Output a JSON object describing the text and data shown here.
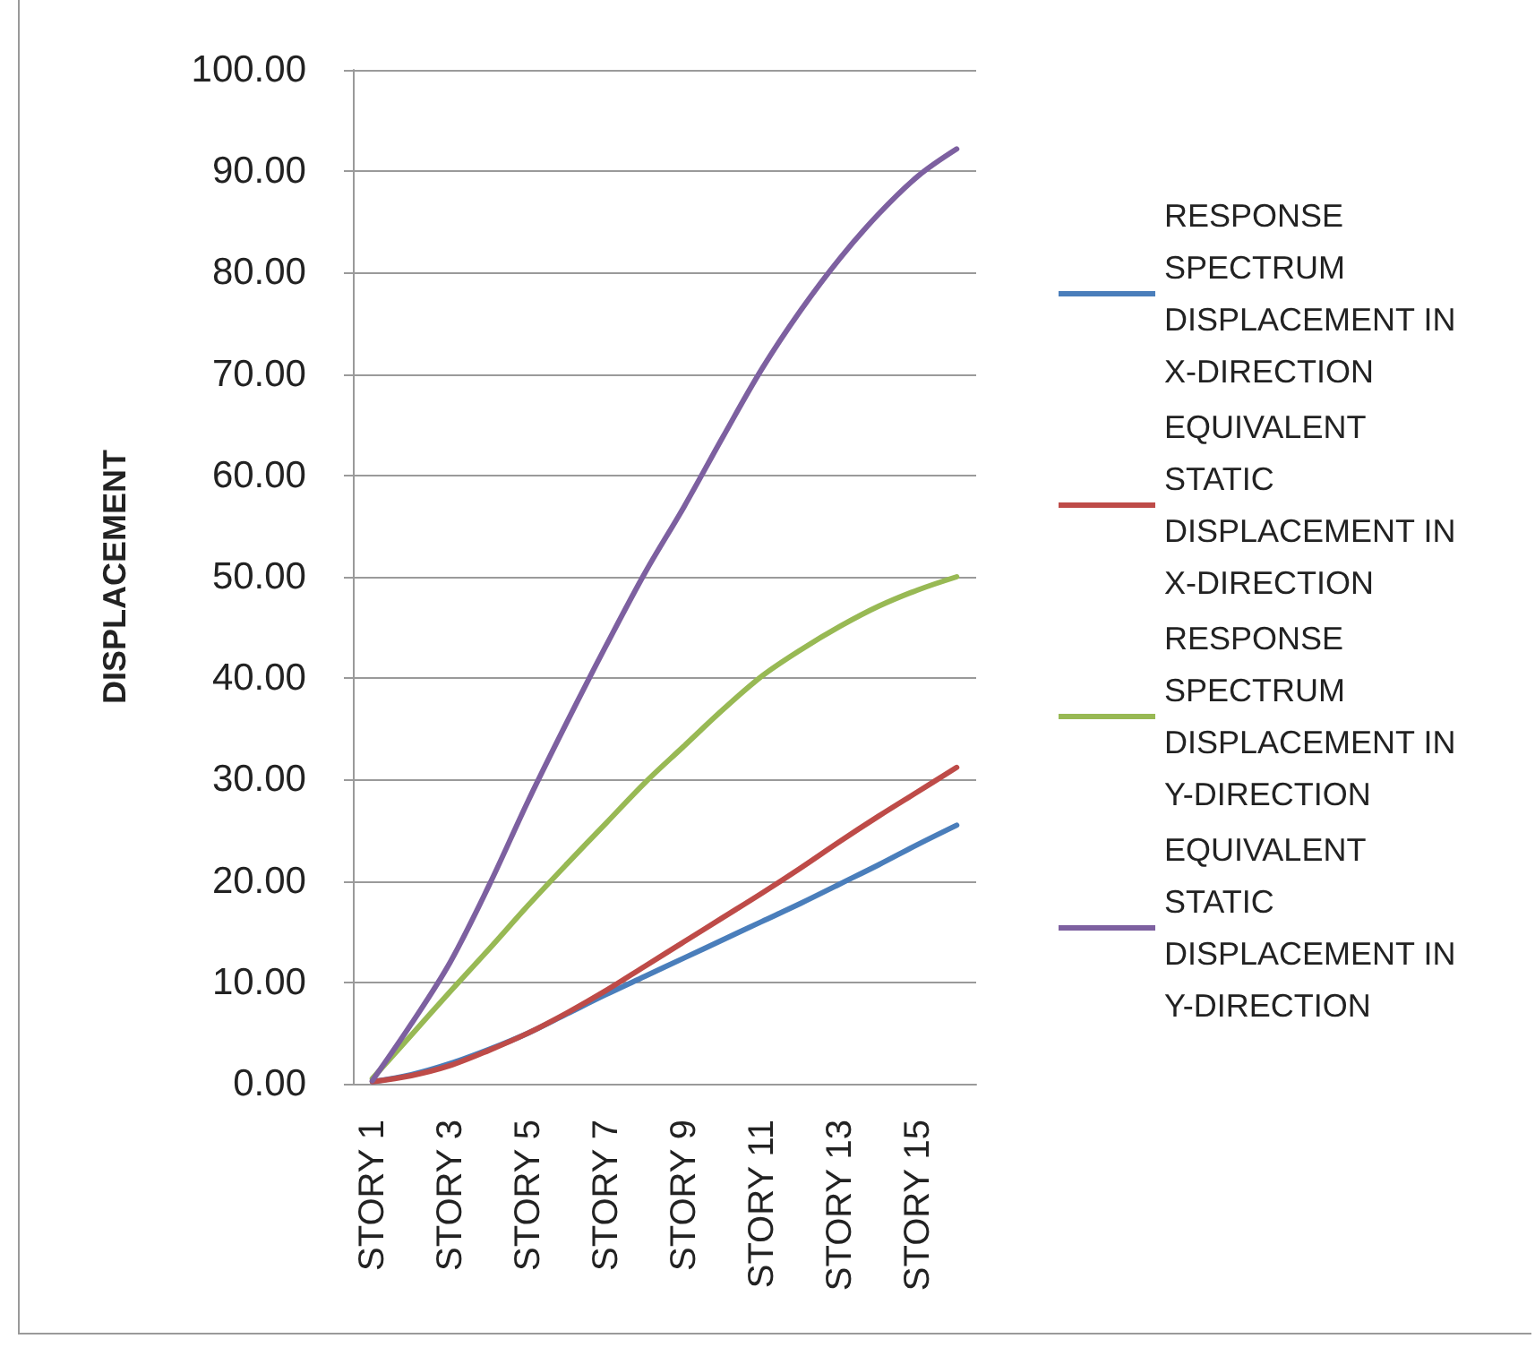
{
  "chart_data": {
    "type": "line",
    "ylabel": "DISPLACEMENT",
    "categories": [
      "STORY 1",
      null,
      "STORY 3",
      null,
      "STORY 5",
      null,
      "STORY 7",
      null,
      "STORY 9",
      null,
      "STORY 11",
      null,
      "STORY 13",
      null,
      "STORY 15",
      null
    ],
    "series": [
      {
        "name": "RESPONSE SPECTRUM DISPLACEMENT IN X-DIRECTION",
        "color": "#4a7ebb",
        "values": [
          0.2,
          0.9,
          2.0,
          3.4,
          5.0,
          6.9,
          8.8,
          10.6,
          12.4,
          14.2,
          16.0,
          17.8,
          19.7,
          21.6,
          23.6,
          25.5
        ]
      },
      {
        "name": "EQUIVALENT STATIC DISPLACEMENT IN X-DIRECTION",
        "color": "#be4b48",
        "values": [
          0.2,
          0.8,
          1.8,
          3.3,
          5.0,
          7.0,
          9.2,
          11.6,
          14.0,
          16.4,
          18.8,
          21.3,
          23.9,
          26.4,
          28.8,
          31.2
        ]
      },
      {
        "name": "RESPONSE SPECTRUM DISPLACEMENT IN Y-DIRECTION",
        "color": "#98b954",
        "values": [
          0.5,
          4.8,
          9.1,
          13.3,
          17.6,
          21.7,
          25.7,
          29.7,
          33.3,
          36.9,
          40.2,
          42.8,
          45.1,
          47.1,
          48.7,
          50.0
        ]
      },
      {
        "name": "EQUIVALENT STATIC DISPLACEMENT IN Y-DIRECTION",
        "color": "#7d60a0",
        "values": [
          0.3,
          5.9,
          12.0,
          19.6,
          27.9,
          35.7,
          43.2,
          50.4,
          56.9,
          63.8,
          70.5,
          76.3,
          81.4,
          85.8,
          89.5,
          92.2
        ]
      }
    ],
    "ylim": [
      0,
      100
    ],
    "yticks": [
      {
        "value": 0,
        "label": "0.00"
      },
      {
        "value": 10,
        "label": "10.00"
      },
      {
        "value": 20,
        "label": "20.00"
      },
      {
        "value": 30,
        "label": "30.00"
      },
      {
        "value": 40,
        "label": "40.00"
      },
      {
        "value": 50,
        "label": "50.00"
      },
      {
        "value": 60,
        "label": "60.00"
      },
      {
        "value": 70,
        "label": "70.00"
      },
      {
        "value": 80,
        "label": "80.00"
      },
      {
        "value": 90,
        "label": "90.00"
      },
      {
        "value": 100,
        "label": "100.00"
      }
    ],
    "grid": "y",
    "legend": "right",
    "marker": "none",
    "line_style": "solid"
  }
}
